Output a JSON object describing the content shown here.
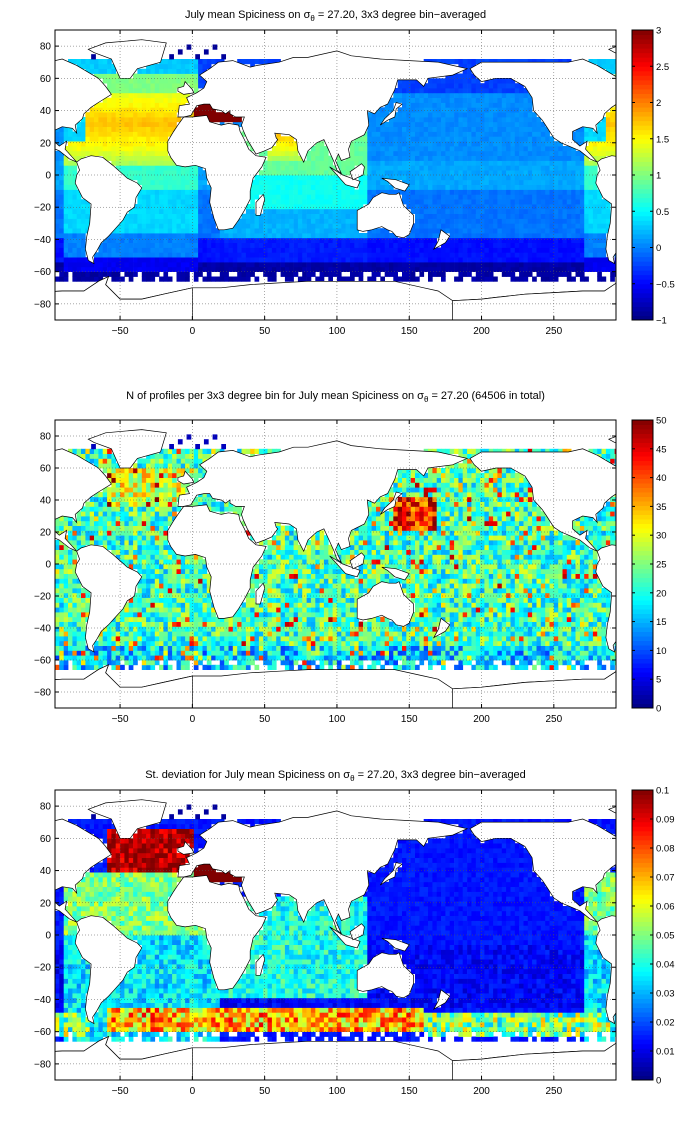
{
  "chart_data": [
    {
      "type": "heatmap",
      "title_parts": {
        "pre": "July mean Spiciness on ",
        "sigma": "σ",
        "sub": "θ",
        "post": " = 27.20, 3x3 degree bin−averaged"
      },
      "xlim": [
        -95,
        293
      ],
      "ylim": [
        -90,
        90
      ],
      "xticks": [
        -50,
        0,
        50,
        100,
        150,
        200,
        250
      ],
      "xticklabels": [
        "−50",
        "0",
        "50",
        "100",
        "150",
        "200",
        "250"
      ],
      "yticks": [
        -80,
        -60,
        -40,
        -20,
        0,
        20,
        40,
        60,
        80
      ],
      "yticklabels": [
        "−80",
        "−60",
        "−40",
        "−20",
        "0",
        "20",
        "40",
        "60",
        "80"
      ],
      "colorbar": {
        "min": -1,
        "max": 3,
        "ticks": [
          -1,
          -0.5,
          0,
          0.5,
          1,
          1.5,
          2,
          2.5,
          3
        ],
        "ticklabels": [
          "−1",
          "−0.5",
          "0",
          "0.5",
          "1",
          "1.5",
          "2",
          "2.5",
          "3"
        ]
      },
      "field": "spiciness",
      "colormap": "jet",
      "grid": true
    },
    {
      "type": "heatmap",
      "title_parts": {
        "pre": "N of profiles per 3x3 degree bin for July mean Spiciness on ",
        "sigma": "σ",
        "sub": "θ",
        "post": " = 27.20 (64506 in total)"
      },
      "xlim": [
        -95,
        293
      ],
      "ylim": [
        -90,
        90
      ],
      "xticks": [
        -50,
        0,
        50,
        100,
        150,
        200,
        250
      ],
      "xticklabels": [
        "−50",
        "0",
        "50",
        "100",
        "150",
        "200",
        "250"
      ],
      "yticks": [
        -80,
        -60,
        -40,
        -20,
        0,
        20,
        40,
        60,
        80
      ],
      "yticklabels": [
        "−80",
        "−60",
        "−40",
        "−20",
        "0",
        "20",
        "40",
        "60",
        "80"
      ],
      "colorbar": {
        "min": 0,
        "max": 50,
        "ticks": [
          0,
          5,
          10,
          15,
          20,
          25,
          30,
          35,
          40,
          45,
          50
        ],
        "ticklabels": [
          "0",
          "5",
          "10",
          "15",
          "20",
          "25",
          "30",
          "35",
          "40",
          "45",
          "50"
        ]
      },
      "field": "count",
      "colormap": "jet",
      "grid": true
    },
    {
      "type": "heatmap",
      "title_parts": {
        "pre": "St. deviation for July mean Spiciness on ",
        "sigma": "σ",
        "sub": "θ",
        "post": " = 27.20, 3x3 degree bin−averaged"
      },
      "xlim": [
        -95,
        293
      ],
      "ylim": [
        -90,
        90
      ],
      "xticks": [
        -50,
        0,
        50,
        100,
        150,
        200,
        250
      ],
      "xticklabels": [
        "−50",
        "0",
        "50",
        "100",
        "150",
        "200",
        "250"
      ],
      "yticks": [
        -80,
        -60,
        -40,
        -20,
        0,
        20,
        40,
        60,
        80
      ],
      "yticklabels": [
        "−80",
        "−60",
        "−40",
        "−20",
        "0",
        "20",
        "40",
        "60",
        "80"
      ],
      "colorbar": {
        "min": 0,
        "max": 0.1,
        "ticks": [
          0,
          0.01,
          0.02,
          0.03,
          0.04,
          0.05,
          0.06,
          0.07,
          0.08,
          0.09,
          0.1
        ],
        "ticklabels": [
          "0",
          "0.01",
          "0.02",
          "0.03",
          "0.04",
          "0.05",
          "0.06",
          "0.07",
          "0.08",
          "0.09",
          "0.1"
        ]
      },
      "field": "stdev",
      "colormap": "jet",
      "grid": true
    }
  ],
  "colors": {
    "background": "#ffffff",
    "frame": "#000000",
    "land": "#ffffff"
  }
}
